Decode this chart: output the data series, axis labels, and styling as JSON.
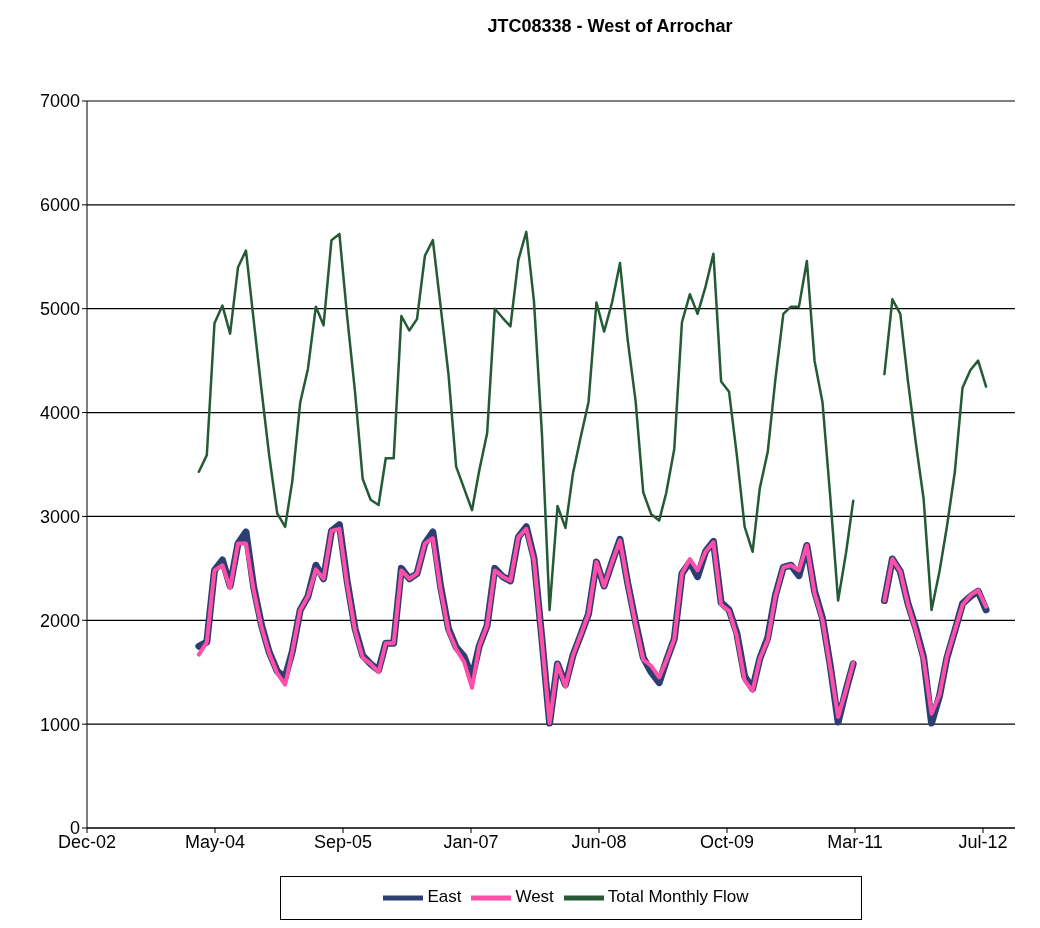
{
  "chart_data": {
    "type": "line",
    "title": "JTC08338 - West of Arrochar",
    "x": [
      "2004-03",
      "2004-04",
      "2004-05",
      "2004-06",
      "2004-07",
      "2004-08",
      "2004-09",
      "2004-10",
      "2004-11",
      "2004-12",
      "2005-01",
      "2005-02",
      "2005-03",
      "2005-04",
      "2005-05",
      "2005-06",
      "2005-07",
      "2005-08",
      "2005-09",
      "2005-10",
      "2005-11",
      "2005-12",
      "2006-01",
      "2006-02",
      "2006-03",
      "2006-04",
      "2006-05",
      "2006-06",
      "2006-07",
      "2006-08",
      "2006-09",
      "2006-10",
      "2006-11",
      "2006-12",
      "2007-01",
      "2007-02",
      "2007-03",
      "2007-04",
      "2007-05",
      "2007-06",
      "2007-07",
      "2007-08",
      "2007-09",
      "2007-10",
      "2007-11",
      "2007-12",
      "2008-01",
      "2008-02",
      "2008-03",
      "2008-04",
      "2008-05",
      "2008-06",
      "2008-07",
      "2008-08",
      "2008-09",
      "2008-10",
      "2008-11",
      "2008-12",
      "2009-01",
      "2009-02",
      "2009-03",
      "2009-04",
      "2009-05",
      "2009-06",
      "2009-07",
      "2009-08",
      "2009-09",
      "2009-10",
      "2009-11",
      "2009-12",
      "2010-01",
      "2010-02",
      "2010-03",
      "2010-04",
      "2010-05",
      "2010-06",
      "2010-07",
      "2010-08",
      "2010-09",
      "2010-10",
      "2010-11",
      "2010-12",
      "2011-01",
      "2011-02",
      "2011-03",
      "2011-04",
      "2011-05",
      "2011-06",
      "2011-07",
      "2011-08",
      "2011-09",
      "2011-10",
      "2011-11",
      "2011-12",
      "2012-01",
      "2012-02",
      "2012-03",
      "2012-04",
      "2012-05",
      "2012-06",
      "2012-07",
      "2012-08"
    ],
    "series": [
      {
        "name": "East",
        "color": "#2b3f73",
        "values": [
          1750,
          1790,
          2480,
          2580,
          2330,
          2740,
          2850,
          2320,
          1950,
          1690,
          1510,
          1450,
          1700,
          2100,
          2230,
          2530,
          2400,
          2860,
          2920,
          2380,
          1920,
          1660,
          1580,
          1520,
          1780,
          1780,
          2500,
          2400,
          2450,
          2740,
          2850,
          2330,
          1920,
          1740,
          1650,
          1450,
          1750,
          1950,
          2500,
          2420,
          2380,
          2800,
          2900,
          2600,
          1820,
          1010,
          1580,
          1380,
          1660,
          1860,
          2060,
          2560,
          2330,
          2560,
          2780,
          2360,
          1980,
          1640,
          1500,
          1400,
          1610,
          1820,
          2450,
          2560,
          2420,
          2660,
          2760,
          2170,
          2100,
          1880,
          1460,
          1340,
          1630,
          1830,
          2240,
          2510,
          2530,
          2430,
          2720,
          2280,
          2020,
          1570,
          1020,
          1330,
          1580,
          null,
          null,
          null,
          2190,
          2590,
          2470,
          2160,
          1920,
          1640,
          1010,
          1270,
          1640,
          1900,
          2160,
          2230,
          2280,
          2100
        ]
      },
      {
        "name": "West",
        "color": "#ff4fa8",
        "values": [
          1670,
          1790,
          2480,
          2530,
          2310,
          2740,
          2740,
          2290,
          1930,
          1680,
          1490,
          1380,
          1700,
          2100,
          2230,
          2490,
          2400,
          2860,
          2880,
          2350,
          1900,
          1640,
          1580,
          1500,
          1780,
          1780,
          2480,
          2400,
          2450,
          2740,
          2790,
          2300,
          1900,
          1720,
          1600,
          1350,
          1750,
          1950,
          2480,
          2420,
          2380,
          2800,
          2880,
          2580,
          1800,
          1010,
          1580,
          1360,
          1660,
          1860,
          2060,
          2560,
          2330,
          2560,
          2770,
          2350,
          1960,
          1620,
          1560,
          1450,
          1610,
          1820,
          2450,
          2590,
          2480,
          2660,
          2750,
          2150,
          2090,
          1850,
          1420,
          1320,
          1630,
          1810,
          2230,
          2510,
          2530,
          2480,
          2720,
          2260,
          2000,
          1550,
          1070,
          1330,
          1590,
          null,
          null,
          null,
          2190,
          2590,
          2470,
          2150,
          1900,
          1620,
          1100,
          1280,
          1650,
          1900,
          2150,
          2240,
          2290,
          2130
        ]
      },
      {
        "name": "Total Monthly Flow",
        "color": "#245a36",
        "values": [
          3430,
          3590,
          4860,
          5030,
          4760,
          5400,
          5560,
          4890,
          4210,
          3580,
          3030,
          2900,
          3340,
          4100,
          4420,
          5020,
          4840,
          5660,
          5720,
          4930,
          4200,
          3360,
          3160,
          3110,
          3560,
          3560,
          4930,
          4790,
          4900,
          5510,
          5660,
          5030,
          4370,
          3480,
          3270,
          3060,
          3440,
          3800,
          5000,
          4910,
          4830,
          5470,
          5740,
          5070,
          3800,
          2100,
          3100,
          2890,
          3410,
          3770,
          4100,
          5060,
          4780,
          5060,
          5440,
          4700,
          4110,
          3230,
          3020,
          2960,
          3230,
          3650,
          4870,
          5140,
          4950,
          5210,
          5530,
          4300,
          4200,
          3600,
          2900,
          2660,
          3270,
          3620,
          4320,
          4950,
          5020,
          5020,
          5460,
          4500,
          4100,
          3200,
          2190,
          2650,
          3150,
          null,
          null,
          null,
          4370,
          5090,
          4950,
          4300,
          3700,
          3170,
          2100,
          2470,
          2900,
          3430,
          4240,
          4410,
          4500,
          4250
        ]
      }
    ],
    "xlim": [
      "2002-12-20",
      "2012-11-22"
    ],
    "xticks": [
      {
        "value": "2002-12-20",
        "label": "Dec-02"
      },
      {
        "value": "2004-05-03",
        "label": "May-04"
      },
      {
        "value": "2005-09-15",
        "label": "Sep-05"
      },
      {
        "value": "2007-01-28",
        "label": "Jan-07"
      },
      {
        "value": "2008-06-11",
        "label": "Jun-08"
      },
      {
        "value": "2009-10-24",
        "label": "Oct-09"
      },
      {
        "value": "2011-03-08",
        "label": "Mar-11"
      },
      {
        "value": "2012-07-20",
        "label": "Jul-12"
      }
    ],
    "ylim": [
      0,
      7000
    ],
    "yticks": [
      0,
      1000,
      2000,
      3000,
      4000,
      5000,
      6000,
      7000
    ],
    "grid": "y",
    "legend": "bottom",
    "marker": "none",
    "line_style": "solid"
  }
}
